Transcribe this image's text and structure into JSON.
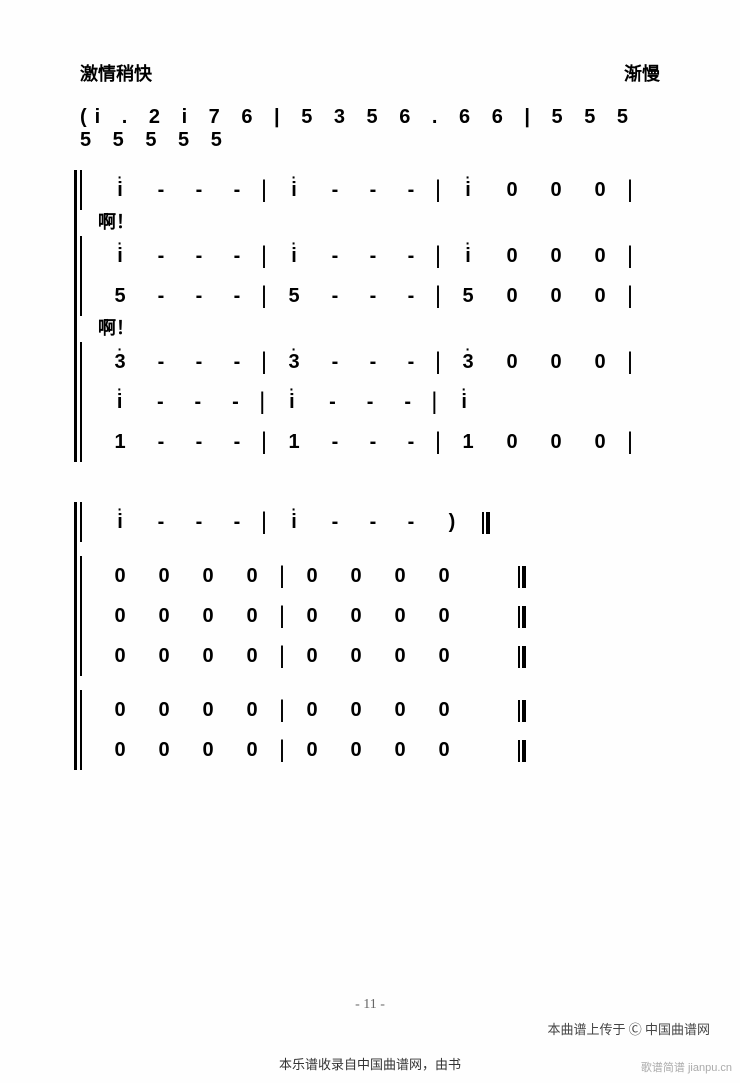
{
  "tempo_left": "激情稍快",
  "tempo_right": "渐慢",
  "melody": "(i . 2  i  7 6  |  5  3 5  6 .  6 6  | 5 5 5  5 5 5  5    5",
  "system1": {
    "lyric1": "啊！",
    "lyric2": "啊！",
    "rows": [
      [
        "i",
        "-",
        "-",
        "-",
        "|",
        "i",
        "-",
        "-",
        "-",
        "|",
        "i",
        "0",
        "0",
        "0",
        "|"
      ],
      [
        "i",
        "-",
        "-",
        "-",
        "|",
        "i",
        "-",
        "-",
        "-",
        "|",
        "i",
        "0",
        "0",
        "0",
        "|"
      ],
      [
        "5",
        "-",
        "-",
        "-",
        "|",
        "5",
        "-",
        "-",
        "-",
        "|",
        "5",
        "0",
        "0",
        "0",
        "|"
      ],
      [
        "3",
        "-",
        "-",
        "-",
        "|",
        "3",
        "-",
        "-",
        "-",
        "|",
        "3",
        "0",
        "0",
        "0",
        "|"
      ],
      [
        "i",
        "-",
        "-",
        "-",
        "|",
        "i",
        "-",
        "-",
        "-",
        "|",
        "i",
        "",
        "",
        "",
        ""
      ],
      [
        "1",
        "-",
        "-",
        "-",
        "|",
        "1",
        "-",
        "-",
        "-",
        "|",
        "1",
        "0",
        "0",
        "0",
        "|"
      ]
    ],
    "dotted_rows": [
      0,
      1,
      3,
      4
    ]
  },
  "system2": {
    "rows": [
      [
        "i",
        "-",
        "-",
        "-",
        "|",
        "i",
        "-",
        "-",
        "-",
        ")",
        "‖"
      ],
      [
        "0",
        "0",
        "0",
        "0",
        "|",
        "0",
        "0",
        "0",
        "0",
        "",
        "‖"
      ],
      [
        "0",
        "0",
        "0",
        "0",
        "|",
        "0",
        "0",
        "0",
        "0",
        "",
        "‖"
      ],
      [
        "0",
        "0",
        "0",
        "0",
        "|",
        "0",
        "0",
        "0",
        "0",
        "",
        "‖"
      ],
      [
        "0",
        "0",
        "0",
        "0",
        "|",
        "0",
        "0",
        "0",
        "0",
        "",
        "‖"
      ],
      [
        "0",
        "0",
        "0",
        "0",
        "|",
        "0",
        "0",
        "0",
        "0",
        "",
        "‖"
      ]
    ],
    "dotted_rows": [
      0
    ]
  },
  "page_number": "- 11 -",
  "footer_right": "本曲谱上传于 Ⓒ 中国曲谱网",
  "footer_center": "本乐谱收录自中国曲谱网，由书",
  "watermark": "歌谱简谱  jianpu.cn"
}
